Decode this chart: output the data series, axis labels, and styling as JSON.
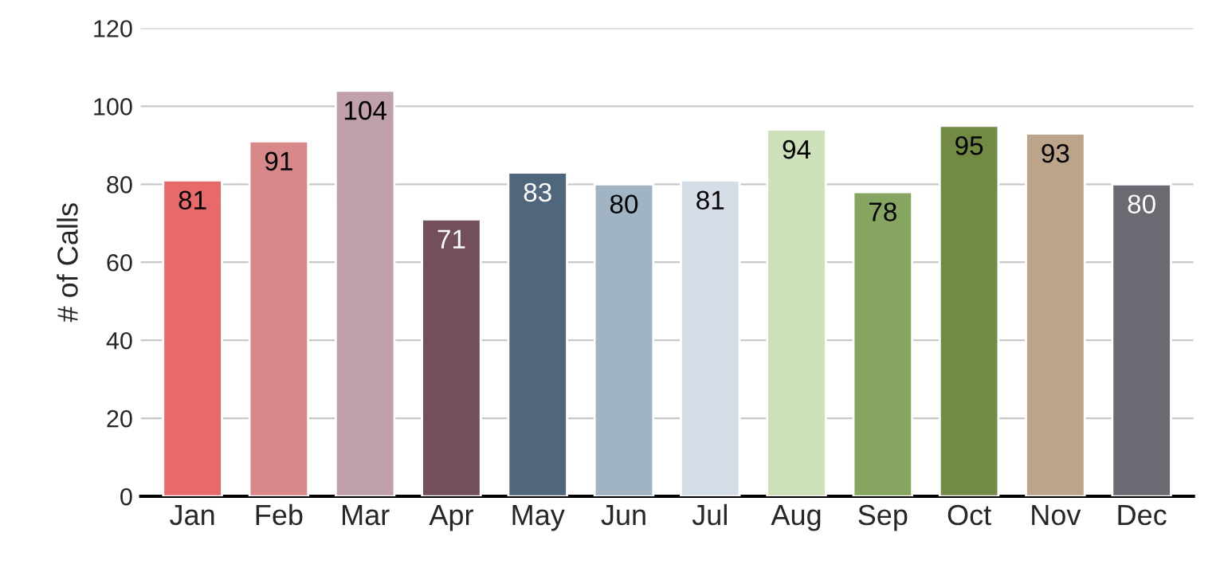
{
  "chart_data": {
    "type": "bar",
    "ylabel": "# of Calls",
    "categories": [
      "Jan",
      "Feb",
      "Mar",
      "Apr",
      "May",
      "Jun",
      "Jul",
      "Aug",
      "Sep",
      "Oct",
      "Nov",
      "Dec"
    ],
    "values": [
      81,
      91,
      104,
      71,
      83,
      80,
      81,
      94,
      78,
      95,
      93,
      80
    ],
    "colors": [
      "#e8696a",
      "#d9888a",
      "#c0a0ac",
      "#734f5e",
      "#50667c",
      "#a0b4c4",
      "#d5dee6",
      "#cde0b9",
      "#86a560",
      "#738a45",
      "#bba489",
      "#6b6a72"
    ],
    "ylim": [
      0,
      120
    ],
    "yticks": [
      0,
      20,
      40,
      60,
      80,
      100,
      120
    ],
    "grid": "y",
    "data_labels": true
  }
}
